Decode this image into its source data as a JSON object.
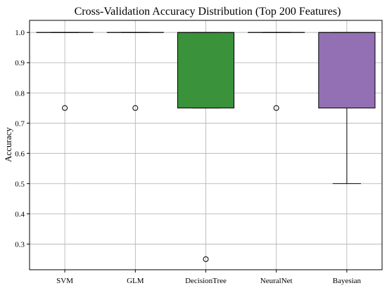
{
  "chart_data": {
    "type": "box",
    "title": "Cross-Validation Accuracy Distribution (Top 200 Features)",
    "xlabel": "",
    "ylabel": "Accuracy",
    "ylim": [
      0.215,
      1.04
    ],
    "yticks": [
      0.3,
      0.4,
      0.5,
      0.6,
      0.7,
      0.8,
      0.9,
      1.0
    ],
    "ytick_labels": [
      "0.3",
      "0.4",
      "0.5",
      "0.6",
      "0.7",
      "0.8",
      "0.9",
      "1.0"
    ],
    "grid": true,
    "categories": [
      "SVM",
      "GLM",
      "DecisionTree",
      "NeuralNet",
      "Bayesian"
    ],
    "boxes": [
      {
        "category": "SVM",
        "color": "#1f77b4",
        "q1": 1.0,
        "median": 1.0,
        "q3": 1.0,
        "whisker_low": 1.0,
        "whisker_high": 1.0,
        "outliers": [
          0.75
        ]
      },
      {
        "category": "GLM",
        "color": "#ff7f0e",
        "q1": 1.0,
        "median": 1.0,
        "q3": 1.0,
        "whisker_low": 1.0,
        "whisker_high": 1.0,
        "outliers": [
          0.75
        ]
      },
      {
        "category": "DecisionTree",
        "color": "#3a923a",
        "q1": 0.75,
        "median": 1.0,
        "q3": 1.0,
        "whisker_low": 0.75,
        "whisker_high": 1.0,
        "outliers": [
          0.25
        ]
      },
      {
        "category": "NeuralNet",
        "color": "#d62728",
        "q1": 1.0,
        "median": 1.0,
        "q3": 1.0,
        "whisker_low": 1.0,
        "whisker_high": 1.0,
        "outliers": [
          0.75
        ]
      },
      {
        "category": "Bayesian",
        "color": "#9370b3",
        "q1": 0.75,
        "median": 1.0,
        "q3": 1.0,
        "whisker_low": 0.5,
        "whisker_high": 1.0,
        "outliers": []
      }
    ]
  }
}
